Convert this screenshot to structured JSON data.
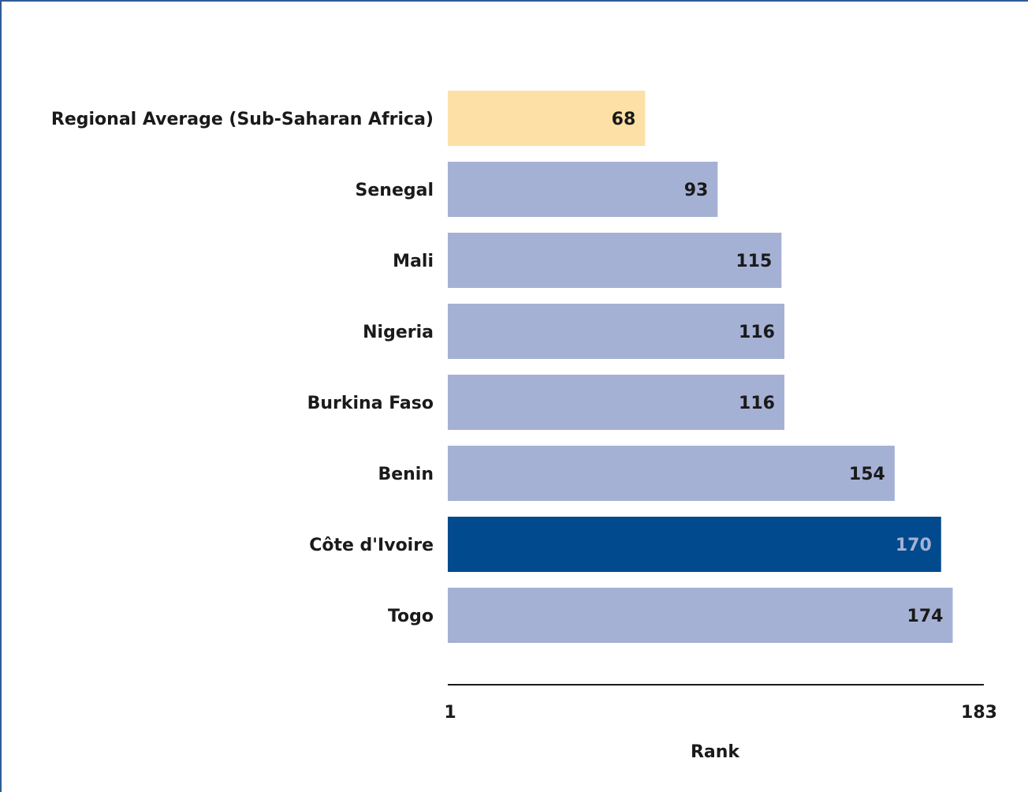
{
  "chart_data": {
    "type": "bar",
    "orientation": "horizontal",
    "categories": [
      "Regional Average (Sub-Saharan Africa)",
      "Senegal",
      "Mali",
      "Nigeria",
      "Burkina Faso",
      "Benin",
      "Côte d'Ivoire",
      "Togo"
    ],
    "values": [
      68,
      93,
      115,
      116,
      116,
      154,
      170,
      174
    ],
    "value_labels": [
      "68",
      "93",
      "115",
      "116",
      "116",
      "154",
      "170",
      "174"
    ],
    "bar_colors": [
      "#fde0a6",
      "#a5b1d4",
      "#a5b1d4",
      "#a5b1d4",
      "#a5b1d4",
      "#a5b1d4",
      "#004a8d",
      "#a5b1d4"
    ],
    "value_label_colors": [
      "#1a1a1a",
      "#1a1a1a",
      "#1a1a1a",
      "#1a1a1a",
      "#1a1a1a",
      "#1a1a1a",
      "#a5b1d4",
      "#1a1a1a"
    ],
    "xlim": [
      1,
      183
    ],
    "x_ticks": [
      "1",
      "183"
    ],
    "xlabel": "Rank",
    "grid": false,
    "legend": "none"
  }
}
